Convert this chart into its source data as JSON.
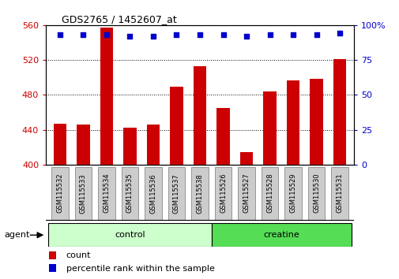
{
  "title": "GDS2765 / 1452607_at",
  "categories": [
    "GSM115532",
    "GSM115533",
    "GSM115534",
    "GSM115535",
    "GSM115536",
    "GSM115537",
    "GSM115538",
    "GSM115526",
    "GSM115527",
    "GSM115528",
    "GSM115529",
    "GSM115530",
    "GSM115531"
  ],
  "counts": [
    447,
    446,
    557,
    442,
    446,
    489,
    513,
    465,
    414,
    484,
    497,
    498,
    521
  ],
  "percentiles": [
    93,
    93,
    93,
    92,
    92,
    93,
    93,
    93,
    92,
    93,
    93,
    93,
    94
  ],
  "bar_color": "#cc0000",
  "dot_color": "#0000cc",
  "ylim_left": [
    400,
    560
  ],
  "ylim_right": [
    0,
    100
  ],
  "yticks_left": [
    400,
    440,
    480,
    520,
    560
  ],
  "yticks_right": [
    0,
    25,
    50,
    75,
    100
  ],
  "groups": [
    {
      "label": "control",
      "start": 0,
      "end": 6,
      "color": "#ccffcc"
    },
    {
      "label": "creatine",
      "start": 7,
      "end": 12,
      "color": "#55dd55"
    }
  ],
  "agent_label": "agent",
  "legend_count_label": "count",
  "legend_pct_label": "percentile rank within the sample",
  "left_tick_color": "#cc0000",
  "right_tick_color": "#0000cc",
  "tick_label_bg": "#cccccc",
  "bar_bottom": 400
}
